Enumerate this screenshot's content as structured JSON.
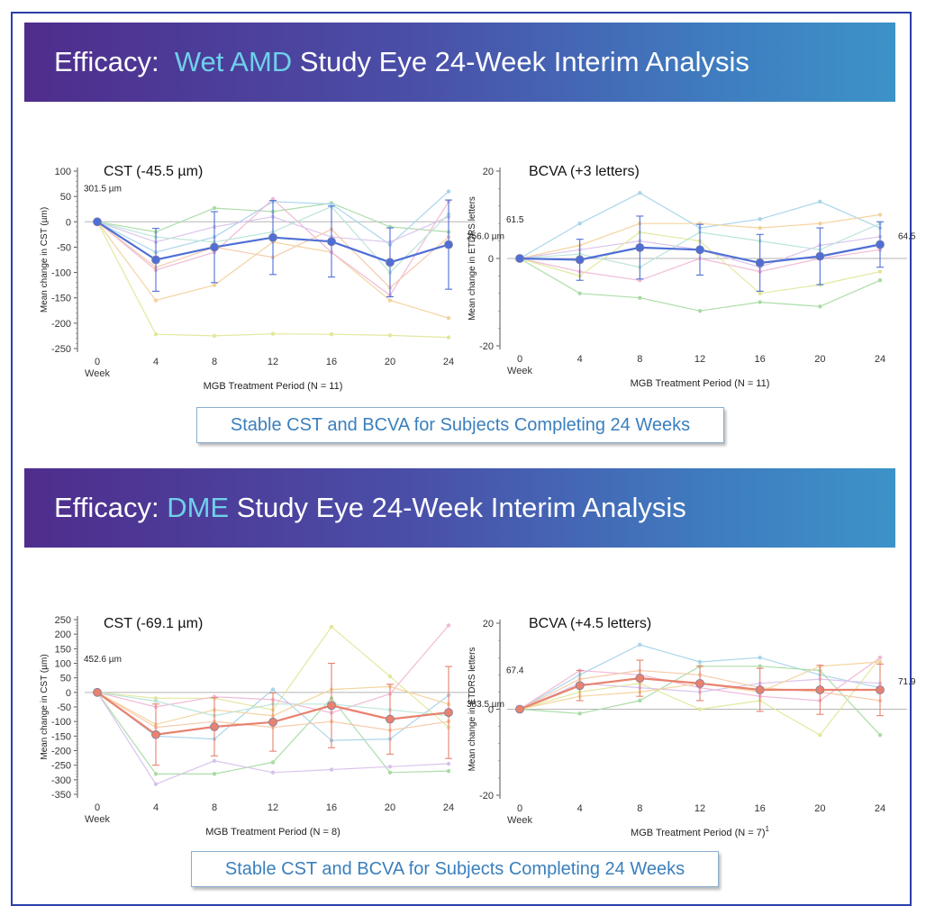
{
  "sections": [
    {
      "title_pre": "Efficacy:  ",
      "title_highlight": "Wet AMD",
      "title_post": " Study Eye 24-Week Interim Analysis",
      "callout": "Stable CST and BCVA for Subjects Completing 24 Weeks"
    },
    {
      "title_pre": "Efficacy: ",
      "title_highlight": "DME",
      "title_post": " Study Eye 24-Week Interim Analysis",
      "callout": "Stable CST and BCVA for Subjects Completing 24 Weeks"
    }
  ],
  "chart_data": [
    {
      "id": "amd-cst",
      "type": "line",
      "title": "CST (-45.5 µm)",
      "ylabel": "Mean change in CST (µm)",
      "xlabel": "MGB Treatment Period (N = 11)",
      "x_axis_extra_label": "Week",
      "x": [
        0,
        4,
        8,
        12,
        16,
        20,
        24
      ],
      "ylim": [
        -250,
        100
      ],
      "yticks": [
        100,
        50,
        0,
        -50,
        -100,
        -150,
        -200,
        -250
      ],
      "mean_color": "#4f6fd6",
      "mean": [
        0,
        -75,
        -50,
        -31,
        -39,
        -80,
        -45
      ],
      "error": [
        0,
        62,
        70,
        73,
        70,
        68,
        88
      ],
      "baseline_label": "301.5 µm",
      "end_label": "256.0 µm",
      "individuals": [
        {
          "color": "#e2e79a",
          "values": [
            0,
            -222,
            -225,
            -221,
            -222,
            -224,
            -228
          ]
        },
        {
          "color": "#f3d29a",
          "values": [
            0,
            -155,
            -125,
            -40,
            -60,
            -155,
            -190
          ]
        },
        {
          "color": "#a9dba4",
          "values": [
            0,
            -20,
            27,
            20,
            37,
            -10,
            -20
          ]
        },
        {
          "color": "#a6d4ea",
          "values": [
            0,
            -60,
            -30,
            40,
            35,
            -45,
            60
          ]
        },
        {
          "color": "#f0b6d6",
          "values": [
            0,
            -95,
            -60,
            45,
            -60,
            -145,
            40
          ]
        },
        {
          "color": "#d8c2ec",
          "values": [
            0,
            -40,
            -10,
            10,
            -30,
            -40,
            10
          ]
        },
        {
          "color": "#f6c8a8",
          "values": [
            0,
            -90,
            -50,
            -70,
            -15,
            -130,
            -30
          ]
        },
        {
          "color": "#b8e4d8",
          "values": [
            0,
            -30,
            -40,
            -20,
            30,
            -100,
            15
          ]
        }
      ]
    },
    {
      "id": "amd-bcva",
      "type": "line",
      "title": "BCVA (+3 letters)",
      "ylabel": "Mean change in ETDRS letters",
      "xlabel": "MGB Treatment Period (N = 11)",
      "x_axis_extra_label": "Week",
      "x": [
        0,
        4,
        8,
        12,
        16,
        20,
        24
      ],
      "ylim": [
        -20,
        20
      ],
      "yticks": [
        20,
        0,
        -20
      ],
      "mean_color": "#4f6fd6",
      "mean": [
        0,
        -0.3,
        2.5,
        2,
        -1,
        0.5,
        3.2
      ],
      "error": [
        0,
        4.7,
        7.2,
        5.8,
        6.5,
        6.5,
        5.2
      ],
      "baseline_label": "61.5",
      "end_label": "64.5",
      "individuals": [
        {
          "color": "#a6d4ea",
          "values": [
            0,
            8,
            15,
            7,
            9,
            13,
            7
          ]
        },
        {
          "color": "#a9dba4",
          "values": [
            0,
            -8,
            -9,
            -12,
            -10,
            -11,
            -5
          ]
        },
        {
          "color": "#f3d29a",
          "values": [
            0,
            3,
            8,
            8,
            7,
            8,
            10
          ]
        },
        {
          "color": "#f0b6d6",
          "values": [
            0,
            -3,
            -5,
            0,
            -3,
            0,
            2
          ]
        },
        {
          "color": "#d8c2ec",
          "values": [
            0,
            2,
            4,
            2,
            -2,
            3,
            5
          ]
        },
        {
          "color": "#e2e79a",
          "values": [
            0,
            -4,
            6,
            4,
            -8,
            -6,
            -3
          ]
        },
        {
          "color": "#b8e4d8",
          "values": [
            0,
            1,
            -2,
            6,
            4,
            2,
            8
          ]
        }
      ]
    },
    {
      "id": "dme-cst",
      "type": "line",
      "title": "CST (-69.1 µm)",
      "ylabel": "Mean change in CST (µm)",
      "xlabel": "MGB Treatment Period (N = 8)",
      "x_axis_extra_label": "Week",
      "x": [
        0,
        4,
        8,
        12,
        16,
        20,
        24
      ],
      "ylim": [
        -350,
        250
      ],
      "yticks": [
        250,
        200,
        150,
        100,
        50,
        0,
        -50,
        -100,
        -150,
        -200,
        -250,
        -300,
        -350
      ],
      "mean_color": "#e8826e",
      "mean": [
        0,
        -145,
        -118,
        -102,
        -45,
        -92,
        -69
      ],
      "error": [
        0,
        105,
        100,
        100,
        145,
        120,
        158
      ],
      "baseline_label": "452.6 µm",
      "end_label": "383.5 µm",
      "individuals": [
        {
          "color": "#e2e79a",
          "values": [
            0,
            -20,
            -20,
            -60,
            225,
            55,
            -120
          ]
        },
        {
          "color": "#a9dba4",
          "values": [
            0,
            -280,
            -280,
            -240,
            -20,
            -275,
            -270
          ]
        },
        {
          "color": "#d8c2ec",
          "values": [
            0,
            -315,
            -235,
            -275,
            -265,
            -255,
            -245
          ]
        },
        {
          "color": "#a6d4ea",
          "values": [
            0,
            -150,
            -160,
            10,
            -165,
            -160,
            -10
          ]
        },
        {
          "color": "#f0b6d6",
          "values": [
            0,
            -50,
            -15,
            -25,
            -70,
            -5,
            230
          ]
        },
        {
          "color": "#f6c8a8",
          "values": [
            0,
            -120,
            -100,
            -120,
            -100,
            -130,
            -100
          ]
        },
        {
          "color": "#f3d29a",
          "values": [
            0,
            -110,
            -60,
            -80,
            10,
            20,
            -40
          ]
        },
        {
          "color": "#b8e4d8",
          "values": [
            0,
            -30,
            -80,
            -40,
            -40,
            -60,
            -80
          ]
        }
      ]
    },
    {
      "id": "dme-bcva",
      "type": "line",
      "title": "BCVA (+4.5 letters)",
      "ylabel": "Mean change in ETDRS letters",
      "xlabel": "MGB Treatment Period (N = 7)",
      "xlabel_superscript": "1",
      "x_axis_extra_label": "Week",
      "x": [
        0,
        4,
        8,
        12,
        16,
        20,
        24
      ],
      "ylim": [
        -20,
        20
      ],
      "yticks": [
        20,
        0,
        -20
      ],
      "mean_color": "#e8826e",
      "mean": [
        0,
        5.5,
        7.2,
        6,
        4.5,
        4.5,
        4.5
      ],
      "error": [
        0,
        3.5,
        4.2,
        4,
        5,
        5.7,
        6
      ],
      "baseline_label": "67.4",
      "end_label": "71.9",
      "individuals": [
        {
          "color": "#a6d4ea",
          "values": [
            0,
            8,
            15,
            11,
            12,
            8,
            5
          ]
        },
        {
          "color": "#a9dba4",
          "values": [
            0,
            -1,
            2,
            10,
            10,
            9,
            -6
          ]
        },
        {
          "color": "#e2e79a",
          "values": [
            0,
            4,
            6,
            0,
            2,
            -6,
            12
          ]
        },
        {
          "color": "#f0b6d6",
          "values": [
            0,
            9,
            8,
            5,
            3,
            2,
            12
          ]
        },
        {
          "color": "#d8c2ec",
          "values": [
            0,
            6,
            5,
            4,
            6,
            7,
            6
          ]
        },
        {
          "color": "#f6c8a8",
          "values": [
            0,
            7,
            9,
            8,
            5,
            4,
            2
          ]
        },
        {
          "color": "#f3d29a",
          "values": [
            0,
            3,
            4,
            6,
            4,
            10,
            11
          ]
        }
      ]
    }
  ]
}
